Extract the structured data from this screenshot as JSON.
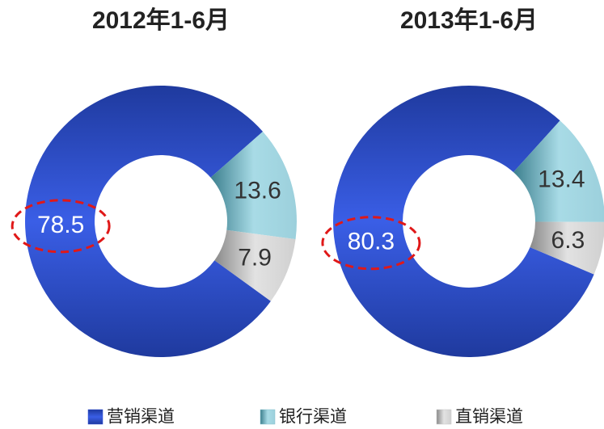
{
  "chart_data": [
    {
      "type": "donut",
      "title": "2012年1-6月",
      "categories": [
        "营销渠道",
        "银行渠道",
        "直销渠道"
      ],
      "colors": [
        "#2d4fd6",
        "#86bfcc",
        "#c4c4c4"
      ],
      "values": [
        78.5,
        13.6,
        7.9
      ]
    },
    {
      "type": "donut",
      "title": "2013年1-6月",
      "values": [
        80.3,
        13.4,
        6.3
      ]
    }
  ]
}
